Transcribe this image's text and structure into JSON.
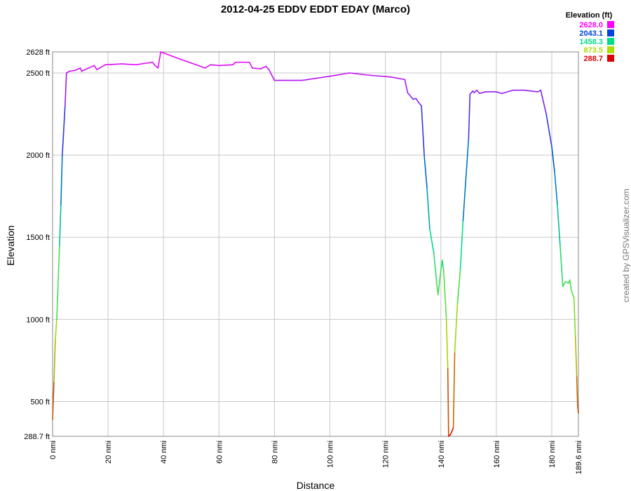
{
  "chart_data": {
    "type": "line",
    "title": "2012-04-25 EDDV EDDT EDAY (Marco)",
    "x_label": "Distance",
    "y_label": "Elevation",
    "legend_title": "Elevation (ft)",
    "legend": [
      {
        "value": 2628.0,
        "label": "2628.0",
        "color": "#ff00ff"
      },
      {
        "value": 2043.1,
        "label": "2043.1",
        "color": "#0044dd"
      },
      {
        "value": 1458.3,
        "label": "1458.3",
        "color": "#00dd88"
      },
      {
        "value": 873.5,
        "label": "873.5",
        "color": "#aadd00"
      },
      {
        "value": 288.7,
        "label": "288.7",
        "color": "#dd0000"
      }
    ],
    "watermark": "created by GPSVisualizer.com",
    "grid": true,
    "xlim": [
      0,
      189.6
    ],
    "ylim": [
      288.7,
      2628
    ],
    "xticks": [
      {
        "value": 0,
        "label": "0 nmi"
      },
      {
        "value": 20,
        "label": "20 nmi"
      },
      {
        "value": 40,
        "label": "40 nmi"
      },
      {
        "value": 60,
        "label": "60 nmi"
      },
      {
        "value": 80,
        "label": "80 nmi"
      },
      {
        "value": 100,
        "label": "100 nmi"
      },
      {
        "value": 120,
        "label": "120 nmi"
      },
      {
        "value": 140,
        "label": "140 nmi"
      },
      {
        "value": 160,
        "label": "160 nmi"
      },
      {
        "value": 180,
        "label": "180 nmi"
      },
      {
        "value": 189.6,
        "label": "189.6 nmi"
      }
    ],
    "yticks": [
      {
        "value": 288.7,
        "label": "288.7 ft"
      },
      {
        "value": 500,
        "label": "500 ft"
      },
      {
        "value": 1000,
        "label": "1000 ft"
      },
      {
        "value": 1500,
        "label": "1500 ft"
      },
      {
        "value": 2000,
        "label": "2000 ft"
      },
      {
        "value": 2500,
        "label": "2500 ft"
      },
      {
        "value": 2628,
        "label": "2628 ft"
      }
    ],
    "x": [
      0,
      0.5,
      1,
      1.5,
      2.5,
      3,
      3.5,
      4.5,
      5,
      6,
      8,
      10,
      10.5,
      13,
      15,
      16,
      19,
      25,
      30,
      36,
      37,
      38,
      39,
      45,
      50,
      55,
      57,
      60,
      65,
      66,
      71,
      72,
      75,
      77,
      78,
      80,
      90,
      100,
      107,
      115,
      122,
      127,
      128,
      129.5,
      130,
      131,
      132,
      133,
      134,
      135,
      136,
      137.5,
      138.5,
      139,
      140,
      140.5,
      141,
      142,
      142.5,
      142.8,
      143.5,
      144.5,
      145,
      146,
      147,
      148,
      150,
      150.5,
      151.5,
      152,
      153,
      154,
      156,
      160,
      162,
      166,
      170,
      175,
      176,
      178,
      180,
      181,
      182,
      183,
      184,
      185,
      186,
      186.5,
      187,
      188,
      188.5,
      189,
      189.3,
      189.6
    ],
    "series": [
      {
        "name": "Elevation",
        "values": [
          390,
          620,
          880,
          1000,
          1450,
          1700,
          2000,
          2300,
          2500,
          2510,
          2515,
          2530,
          2510,
          2530,
          2545,
          2520,
          2550,
          2555,
          2550,
          2565,
          2545,
          2530,
          2628,
          2590,
          2560,
          2530,
          2550,
          2545,
          2550,
          2565,
          2565,
          2530,
          2525,
          2540,
          2520,
          2455,
          2455,
          2480,
          2500,
          2485,
          2475,
          2460,
          2380,
          2350,
          2340,
          2345,
          2320,
          2300,
          2000,
          1800,
          1550,
          1400,
          1220,
          1150,
          1300,
          1360,
          1300,
          1000,
          700,
          288.7,
          300,
          340,
          800,
          1100,
          1300,
          1600,
          2100,
          2370,
          2390,
          2380,
          2395,
          2375,
          2385,
          2385,
          2375,
          2395,
          2395,
          2385,
          2395,
          2250,
          2050,
          1900,
          1700,
          1450,
          1200,
          1230,
          1220,
          1240,
          1180,
          1130,
          900,
          650,
          480,
          430
        ]
      }
    ]
  }
}
